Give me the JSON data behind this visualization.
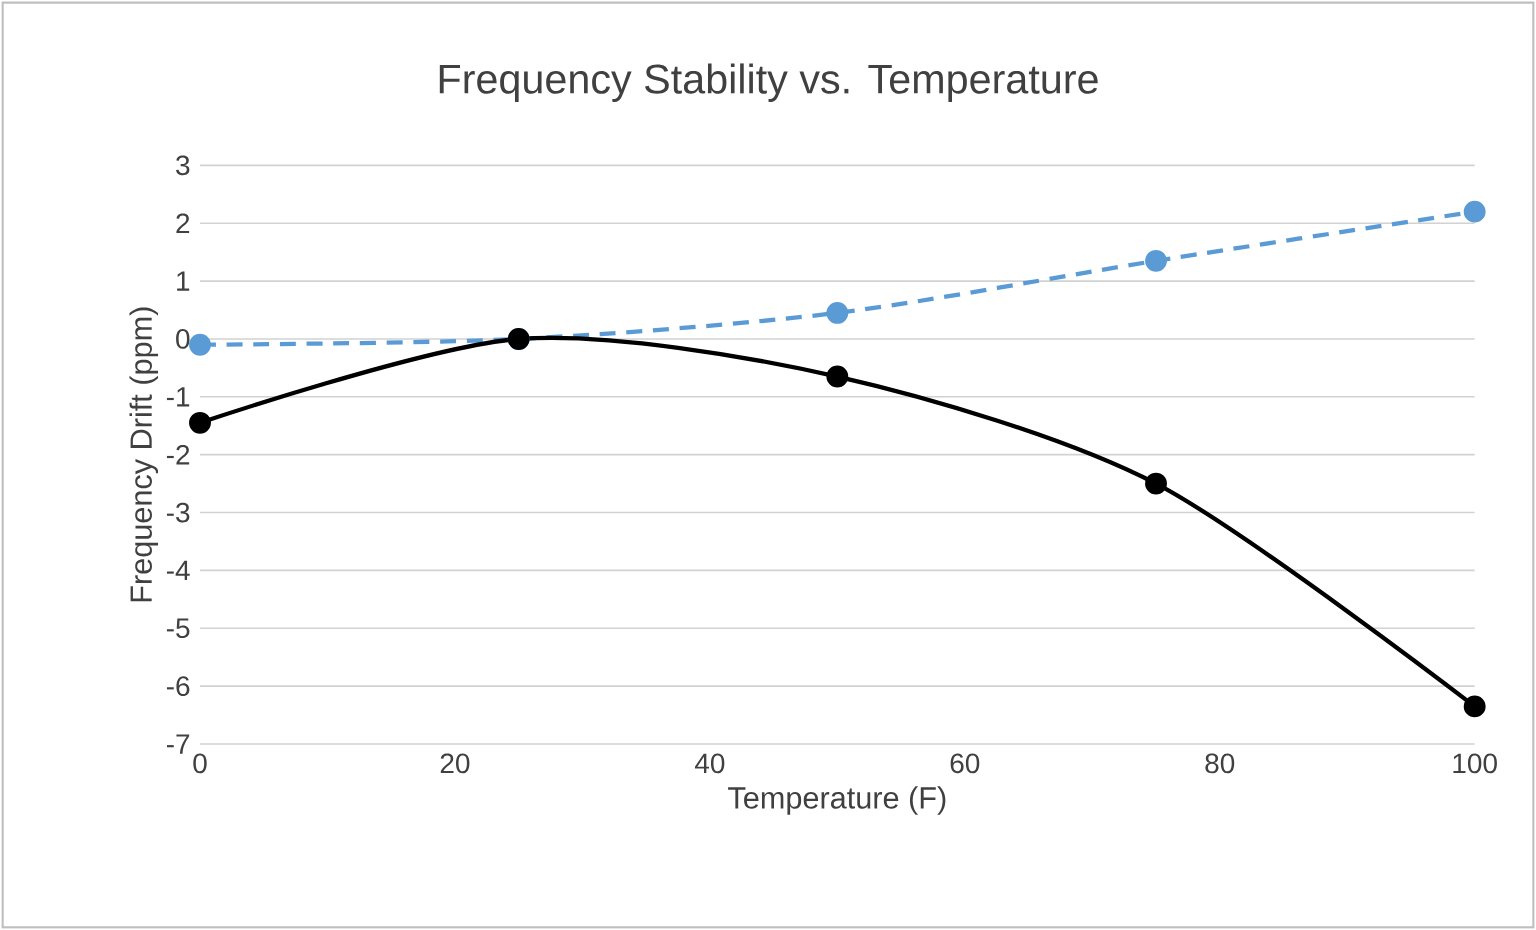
{
  "chart_data": {
    "type": "line",
    "title": "Frequency Stability vs. Temperature",
    "xlabel": "Temperature (F)",
    "ylabel": "Frequency Drift (ppm)",
    "x": [
      0,
      25,
      50,
      75,
      100
    ],
    "series": [
      {
        "color": "#5b9bd5",
        "values": [
          -0.1,
          0,
          0.45,
          1.35,
          2.2
        ],
        "line_style": "dashed",
        "marker": "circle"
      },
      {
        "color": "#000000",
        "values": [
          -1.45,
          0,
          -0.65,
          -2.5,
          -6.35
        ],
        "line_style": "solid",
        "marker": "circle"
      }
    ],
    "xlim": [
      0,
      100
    ],
    "xticks": [
      0,
      20,
      40,
      60,
      80,
      100
    ],
    "ylim": [
      -7,
      3
    ],
    "yticks": [
      -7,
      -6,
      -5,
      -4,
      -3,
      -2,
      -1,
      0,
      1,
      2,
      3
    ],
    "grid": "y"
  }
}
